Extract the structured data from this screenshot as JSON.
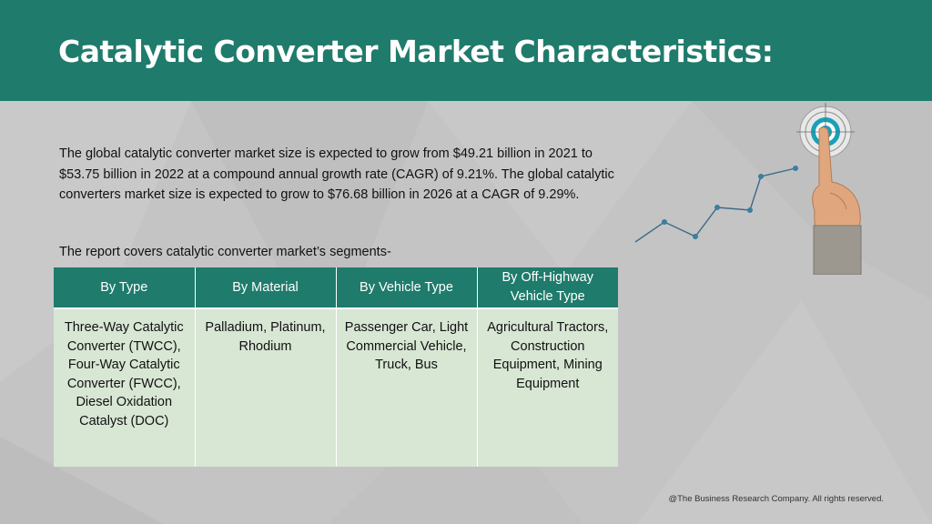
{
  "header": {
    "title": "Catalytic Converter Market Characteristics:"
  },
  "intro": {
    "paragraph": "The global catalytic converter market size is expected to grow from $49.21 billion in 2021 to $53.75 billion in 2022 at a compound annual growth rate (CAGR) of 9.21%. The global catalytic converters market size is expected to grow to $76.68 billion in 2026 at a CAGR of 9.29%.",
    "segments_heading": "The report covers catalytic converter market’s segments-"
  },
  "segments_table": {
    "headers": [
      "By Type",
      "By Material",
      "By Vehicle Type",
      "By Off-Highway Vehicle Type"
    ],
    "cells": [
      "Three-Way Catalytic Converter (TWCC), Four-Way Catalytic Converter (FWCC), Diesel Oxidation Catalyst (DOC)",
      "Palladium, Platinum, Rhodium",
      "Passenger Car, Light Commercial Vehicle, Truck, Bus",
      "Agricultural Tractors, Construction Equipment, Mining Equipment"
    ]
  },
  "footer": {
    "copyright": "@The Business Research Company. All rights reserved."
  },
  "colors": {
    "brand_teal": "#1f7b6b",
    "table_cell": "#d8e6d4",
    "background": "#c4c4c4",
    "target_ring": "#1aa0b8"
  },
  "icons": {
    "graphic": "growth-line-with-target-icon"
  }
}
